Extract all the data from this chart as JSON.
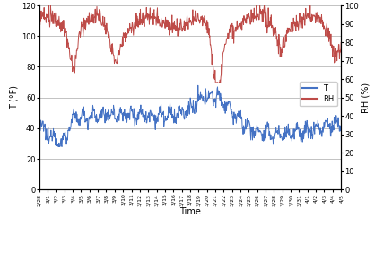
{
  "title": "",
  "xlabel": "Time",
  "ylabel_left": "T (°F)",
  "ylabel_right": "RH (%)",
  "ylim_left": [
    0,
    120
  ],
  "ylim_right": [
    0,
    100
  ],
  "yticks_left": [
    0,
    20,
    40,
    60,
    80,
    100,
    120
  ],
  "yticks_right": [
    0,
    10,
    20,
    30,
    40,
    50,
    60,
    70,
    80,
    90,
    100
  ],
  "temp_color": "#4472C4",
  "rh_color": "#BE4B48",
  "legend_T": "T",
  "legend_RH": "RH",
  "figsize": [
    4.37,
    3.02
  ],
  "dpi": 100,
  "n_points": 744,
  "date_labels": [
    "2/28",
    "3/1",
    "3/2",
    "3/3",
    "3/4",
    "3/5",
    "3/6",
    "3/7",
    "3/8",
    "3/9",
    "3/10",
    "3/11",
    "3/12",
    "3/13",
    "3/14",
    "3/15",
    "3/16",
    "3/17",
    "3/18",
    "3/19",
    "3/20",
    "3/21",
    "3/22",
    "3/23",
    "3/24",
    "3/25",
    "3/26",
    "3/27",
    "3/28",
    "3/29",
    "3/30",
    "3/31",
    "4/1",
    "4/2",
    "4/3",
    "4/4",
    "4/5"
  ],
  "plot_area_color": "#FFFFFF",
  "grid_color": "#AAAAAA",
  "seed": 12345
}
